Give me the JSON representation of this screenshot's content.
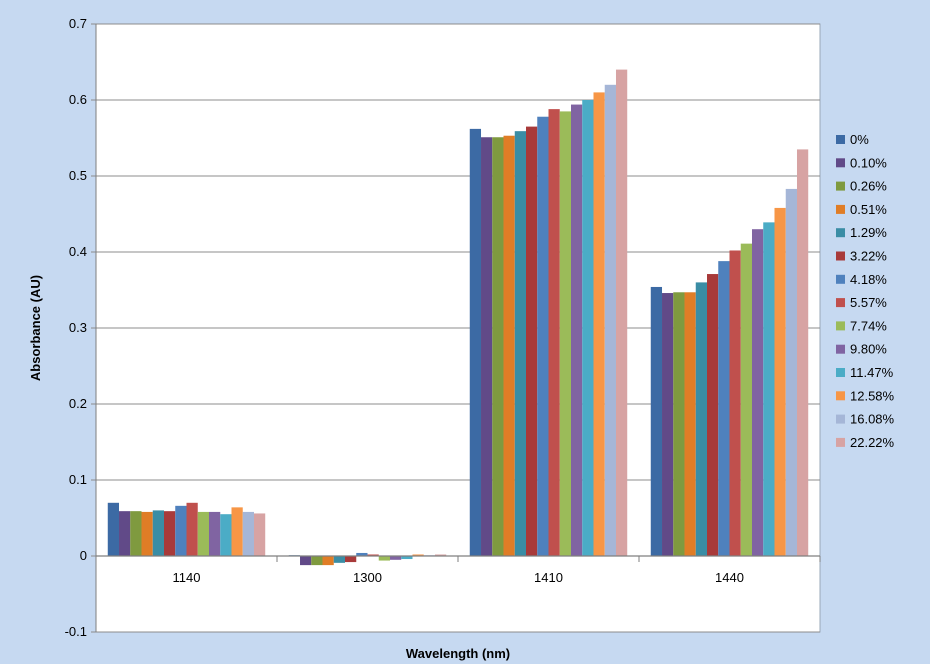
{
  "chart_data": {
    "type": "bar",
    "xlabel": "Wavelength (nm)",
    "ylabel": "Absorbance (AU)",
    "ylim": [
      -0.1,
      0.7
    ],
    "yticks": [
      "-0.1",
      "0",
      "0.1",
      "0.2",
      "0.3",
      "0.4",
      "0.5",
      "0.6",
      "0.7"
    ],
    "ytick_values": [
      -0.1,
      0,
      0.1,
      0.2,
      0.3,
      0.4,
      0.5,
      0.6,
      0.7
    ],
    "grid": "horizontal",
    "legend_position": "right",
    "categories": [
      "1140",
      "1300",
      "1410",
      "1440"
    ],
    "series": [
      {
        "name": "0%",
        "color": "#3c6aa4",
        "values": [
          0.07,
          0.001,
          0.562,
          0.354
        ]
      },
      {
        "name": "0.10%",
        "color": "#614a88",
        "values": [
          0.059,
          -0.012,
          0.551,
          0.346
        ]
      },
      {
        "name": "0.26%",
        "color": "#7f9a3f",
        "values": [
          0.059,
          -0.012,
          0.551,
          0.347
        ]
      },
      {
        "name": "0.51%",
        "color": "#e07d26",
        "values": [
          0.058,
          -0.012,
          0.553,
          0.347
        ]
      },
      {
        "name": "1.29%",
        "color": "#3a8da5",
        "values": [
          0.06,
          -0.009,
          0.559,
          0.36
        ]
      },
      {
        "name": "3.22%",
        "color": "#a83a3a",
        "values": [
          0.059,
          -0.008,
          0.565,
          0.371
        ]
      },
      {
        "name": "4.18%",
        "color": "#4f81bd",
        "values": [
          0.066,
          0.004,
          0.578,
          0.388
        ]
      },
      {
        "name": "5.57%",
        "color": "#c0504d",
        "values": [
          0.07,
          0.002,
          0.588,
          0.402
        ]
      },
      {
        "name": "7.74%",
        "color": "#9bbb59",
        "values": [
          0.058,
          -0.006,
          0.585,
          0.411
        ]
      },
      {
        "name": "9.80%",
        "color": "#8064a2",
        "values": [
          0.058,
          -0.005,
          0.594,
          0.43
        ]
      },
      {
        "name": "11.47%",
        "color": "#4bacc6",
        "values": [
          0.055,
          -0.004,
          0.6,
          0.439
        ]
      },
      {
        "name": "12.58%",
        "color": "#f79646",
        "values": [
          0.064,
          0.002,
          0.61,
          0.458
        ]
      },
      {
        "name": "16.08%",
        "color": "#a5b6d7",
        "values": [
          0.058,
          0.001,
          0.62,
          0.483
        ]
      },
      {
        "name": "22.22%",
        "color": "#d7a3a3",
        "values": [
          0.056,
          0.002,
          0.64,
          0.535
        ]
      }
    ]
  }
}
